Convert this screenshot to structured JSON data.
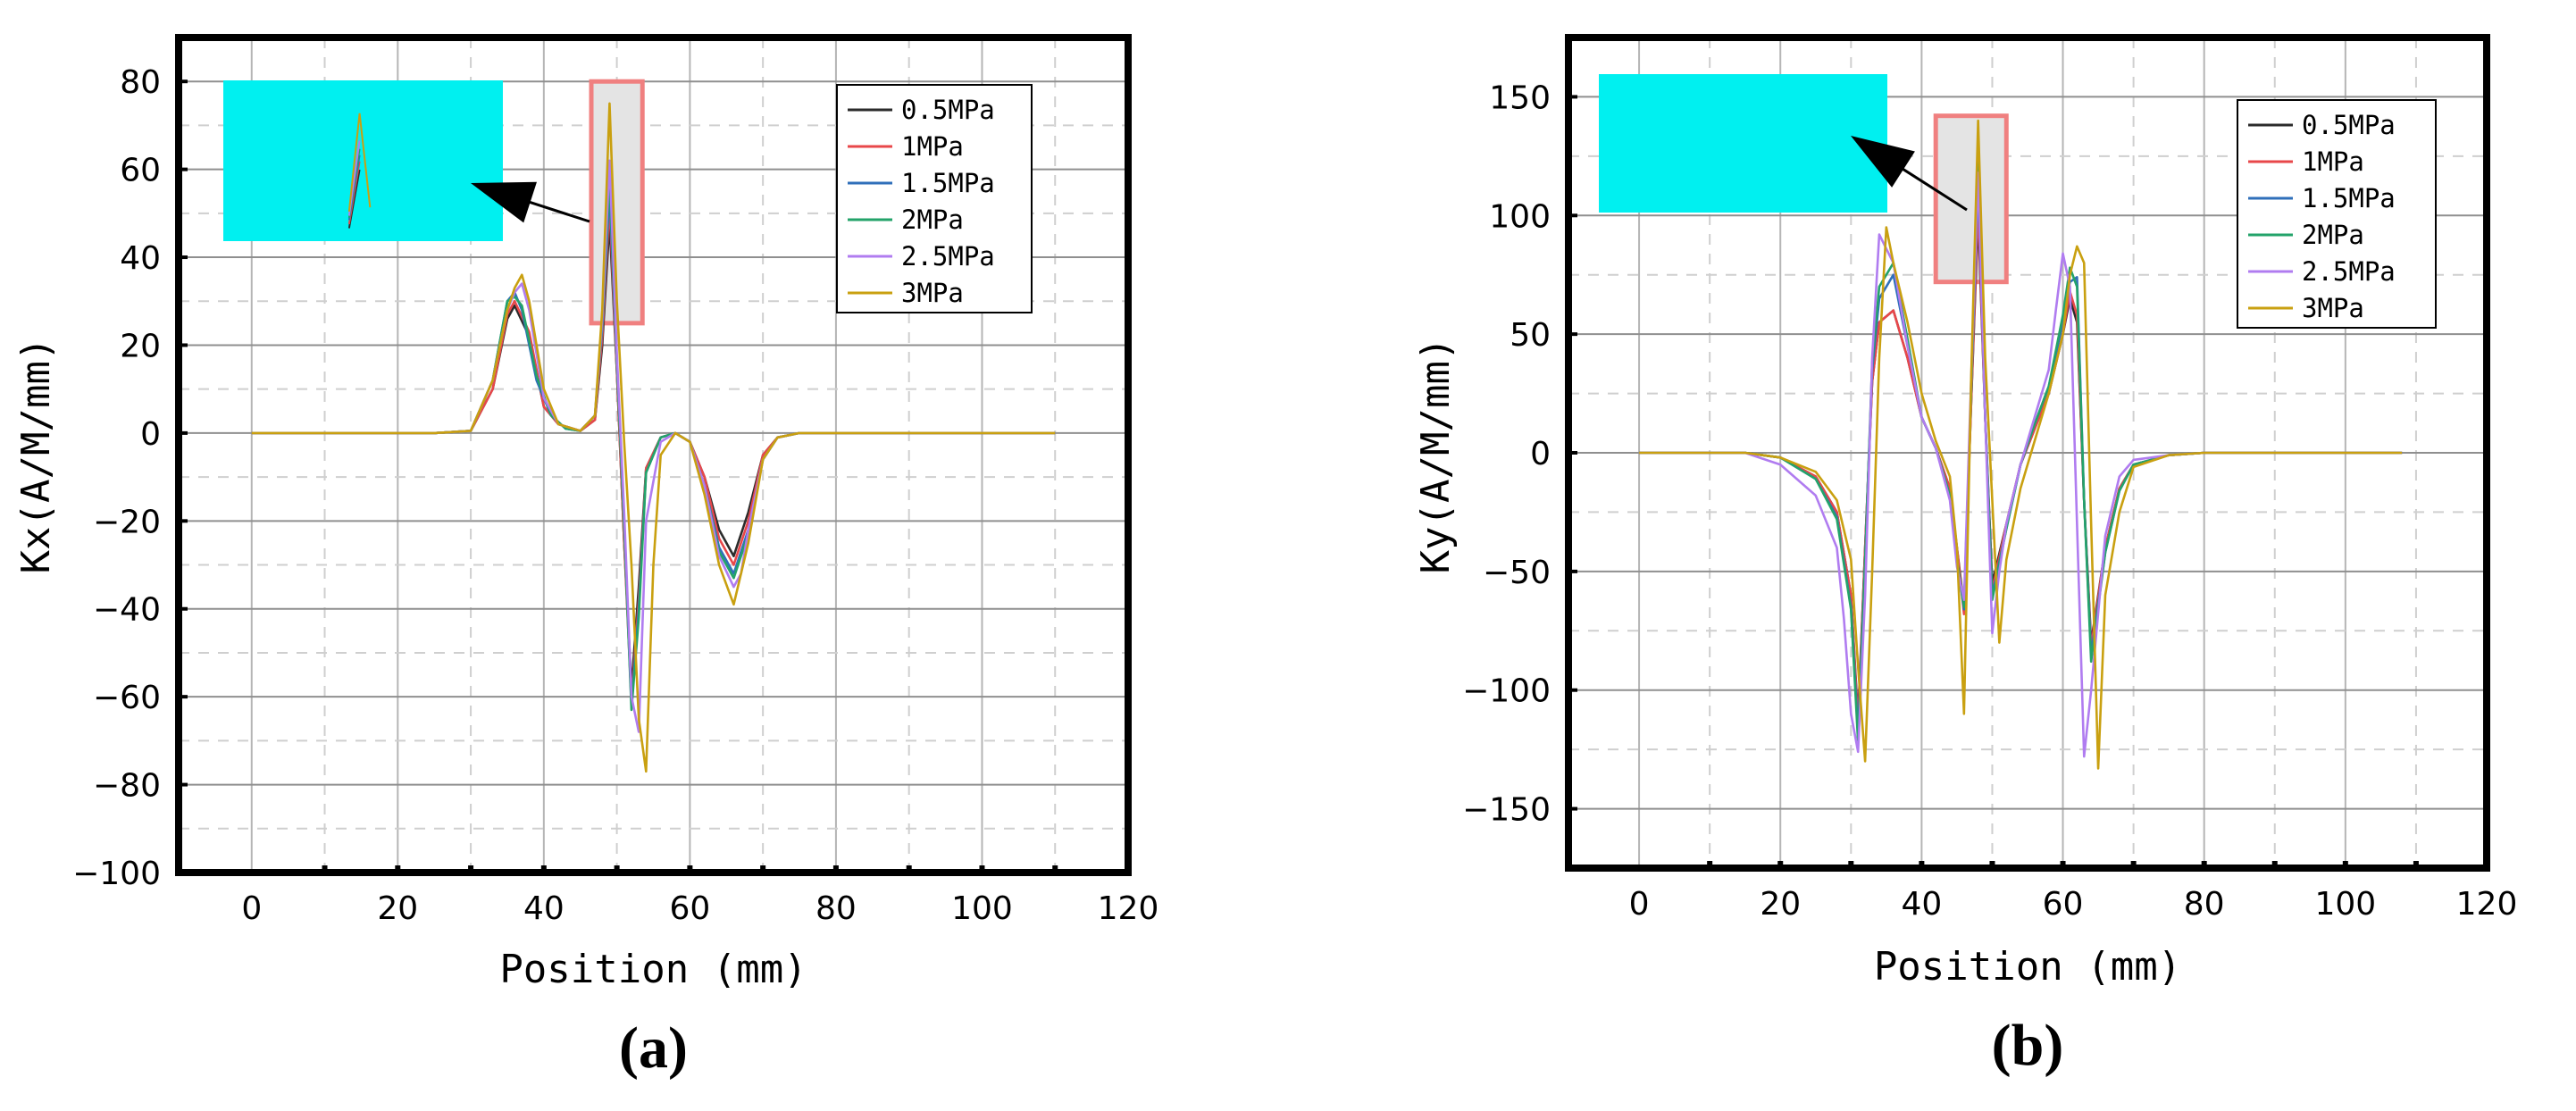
{
  "legend_colors": {
    "0.5MPa": "#2b2b2b",
    "1MPa": "#e8474a",
    "1.5MPa": "#2f6fba",
    "2MPa": "#23a36a",
    "2.5MPa": "#b07cf0",
    "3MPa": "#c9a010"
  },
  "inset_color": "#00f0f0",
  "highlight_color": "#f08080",
  "chart_data": [
    {
      "type": "line",
      "panel_label": "(a)",
      "xlabel": "Position (mm)",
      "ylabel": "Kx(A/M/mm)",
      "xlim": [
        -10,
        120
      ],
      "ylim": [
        -100,
        90
      ],
      "xticks": [
        0,
        20,
        40,
        60,
        80,
        100,
        120
      ],
      "yticks": [
        -100,
        -80,
        -60,
        -40,
        -20,
        0,
        20,
        40,
        60,
        80
      ],
      "grid": true,
      "legend_position": "top-right",
      "series": [
        {
          "name": "0.5MPa",
          "x": [
            0,
            25,
            30,
            33,
            35,
            36,
            38,
            40,
            42,
            45,
            47,
            48,
            49,
            50,
            51,
            52,
            53,
            54,
            56,
            58,
            60,
            62,
            64,
            66,
            68,
            70,
            72,
            75,
            80,
            110
          ],
          "y": [
            0,
            0,
            0.5,
            10,
            26,
            29,
            22,
            6,
            2,
            0.5,
            3,
            20,
            48,
            14,
            -25,
            -58,
            -35,
            -8,
            -1,
            0,
            -2,
            -10,
            -22,
            -28,
            -18,
            -5,
            -1,
            0,
            0,
            0
          ]
        },
        {
          "name": "1MPa",
          "x": [
            0,
            25,
            30,
            33,
            35,
            36,
            38,
            40,
            42,
            45,
            47,
            48,
            49,
            50,
            51,
            52,
            53,
            54,
            56,
            58,
            60,
            62,
            64,
            66,
            68,
            70,
            72,
            75,
            80,
            110
          ],
          "y": [
            0,
            0,
            0.5,
            10,
            27,
            30,
            23,
            6,
            2,
            0.5,
            3,
            22,
            52,
            14,
            -25,
            -61,
            -38,
            -8,
            -1,
            0,
            -2,
            -10,
            -24,
            -30,
            -20,
            -5,
            -1,
            0,
            0,
            0
          ]
        },
        {
          "name": "1.5MPa",
          "x": [
            0,
            25,
            30,
            33,
            35,
            36,
            37,
            39,
            41,
            43,
            45,
            47,
            48,
            49,
            50,
            51,
            52,
            53,
            54,
            56,
            58,
            60,
            62,
            64,
            66,
            68,
            70,
            72,
            75,
            80,
            110
          ],
          "y": [
            0,
            0,
            0.5,
            12,
            30,
            32,
            28,
            12,
            4,
            1,
            0.5,
            4,
            24,
            55,
            16,
            -20,
            -62,
            -40,
            -9,
            -1,
            0,
            -2,
            -12,
            -26,
            -32,
            -22,
            -6,
            -1,
            0,
            0,
            0
          ]
        },
        {
          "name": "2MPa",
          "x": [
            0,
            25,
            30,
            33,
            35,
            36,
            37,
            39,
            41,
            43,
            45,
            47,
            48,
            49,
            50,
            51,
            52,
            53,
            54,
            56,
            58,
            60,
            62,
            64,
            66,
            68,
            70,
            72,
            75,
            80,
            110
          ],
          "y": [
            0,
            0,
            0.5,
            12,
            30,
            31,
            29,
            13,
            4,
            1,
            0.5,
            4,
            25,
            58,
            16,
            -22,
            -63,
            -42,
            -9,
            -1,
            0,
            -2,
            -12,
            -27,
            -33,
            -23,
            -6,
            -1,
            0,
            0,
            0
          ]
        },
        {
          "name": "2.5MPa",
          "x": [
            0,
            25,
            30,
            33,
            35,
            36,
            37,
            38,
            40,
            42,
            45,
            47,
            48,
            49,
            50,
            51,
            52,
            53,
            54,
            56,
            58,
            60,
            62,
            64,
            66,
            67,
            68,
            70,
            72,
            75,
            80,
            110
          ],
          "y": [
            0,
            0,
            0.5,
            12,
            28,
            32,
            34,
            28,
            8,
            2,
            0.5,
            4,
            26,
            62,
            18,
            -18,
            -60,
            -68,
            -20,
            -2,
            0,
            -2,
            -12,
            -28,
            -35,
            -32,
            -22,
            -6,
            -1,
            0,
            0,
            0
          ]
        },
        {
          "name": "3MPa",
          "x": [
            0,
            25,
            30,
            33,
            35,
            36,
            37,
            38,
            40,
            42,
            45,
            47,
            48,
            49,
            50,
            51,
            52,
            53,
            54,
            55,
            56,
            58,
            60,
            62,
            64,
            66,
            68,
            70,
            72,
            75,
            80,
            110
          ],
          "y": [
            0,
            0,
            0.5,
            12,
            28,
            33,
            36,
            30,
            10,
            2,
            0.5,
            4,
            28,
            75,
            30,
            -2,
            -30,
            -65,
            -77,
            -30,
            -5,
            0,
            -2,
            -14,
            -30,
            -39,
            -25,
            -6,
            -1,
            0,
            0,
            0
          ]
        }
      ]
    },
    {
      "type": "line",
      "panel_label": "(b)",
      "xlabel": "Position (mm)",
      "ylabel": "Ky(A/M/mm)",
      "xlim": [
        -10,
        120
      ],
      "ylim": [
        -175,
        175
      ],
      "xticks": [
        0,
        20,
        40,
        60,
        80,
        100,
        120
      ],
      "yticks": [
        -150,
        -100,
        -50,
        0,
        50,
        100,
        150
      ],
      "grid": true,
      "legend_position": "top-right",
      "series": [
        {
          "name": "0.5MPa",
          "x": [
            0,
            15,
            20,
            25,
            28,
            30,
            31,
            32,
            33,
            34,
            36,
            38,
            40,
            42,
            44,
            45,
            46,
            47,
            48,
            49,
            50,
            52,
            54,
            56,
            58,
            60,
            61,
            62,
            63,
            64,
            66,
            68,
            70,
            75,
            80,
            108
          ],
          "y": [
            0,
            0,
            -2,
            -10,
            -25,
            -60,
            -112,
            -40,
            30,
            55,
            60,
            40,
            15,
            2,
            -15,
            -40,
            -65,
            20,
            100,
            15,
            -55,
            -30,
            -5,
            10,
            25,
            50,
            65,
            55,
            -20,
            -80,
            -40,
            -15,
            -5,
            -1,
            0,
            0
          ]
        },
        {
          "name": "1MPa",
          "x": [
            0,
            15,
            20,
            25,
            28,
            30,
            31,
            32,
            33,
            34,
            36,
            38,
            40,
            42,
            44,
            45,
            46,
            47,
            48,
            49,
            50,
            52,
            54,
            56,
            58,
            60,
            61,
            62,
            63,
            64,
            66,
            68,
            70,
            75,
            80,
            108
          ],
          "y": [
            0,
            0,
            -2,
            -10,
            -25,
            -60,
            -114,
            -40,
            30,
            55,
            60,
            40,
            15,
            2,
            -15,
            -40,
            -68,
            20,
            105,
            15,
            -58,
            -30,
            -5,
            10,
            25,
            50,
            68,
            58,
            -20,
            -82,
            -40,
            -15,
            -5,
            -1,
            0,
            0
          ]
        },
        {
          "name": "1.5MPa",
          "x": [
            0,
            15,
            20,
            25,
            28,
            30,
            31,
            32,
            33,
            34,
            36,
            38,
            40,
            42,
            44,
            45,
            46,
            47,
            48,
            49,
            50,
            52,
            54,
            56,
            58,
            60,
            61,
            62,
            63,
            64,
            66,
            68,
            70,
            75,
            80,
            108
          ],
          "y": [
            0,
            0,
            -2,
            -11,
            -27,
            -65,
            -118,
            -45,
            35,
            65,
            75,
            45,
            15,
            2,
            -18,
            -45,
            -66,
            25,
            115,
            15,
            -60,
            -32,
            -5,
            12,
            28,
            55,
            72,
            74,
            -20,
            -85,
            -42,
            -16,
            -5,
            -1,
            0,
            0
          ]
        },
        {
          "name": "2MPa",
          "x": [
            0,
            15,
            20,
            25,
            28,
            30,
            31,
            32,
            33,
            34,
            36,
            38,
            40,
            42,
            44,
            45,
            46,
            47,
            48,
            49,
            50,
            52,
            54,
            56,
            58,
            60,
            61,
            62,
            63,
            64,
            66,
            68,
            70,
            75,
            80,
            108
          ],
          "y": [
            0,
            0,
            -2,
            -11,
            -28,
            -66,
            -122,
            -45,
            38,
            70,
            80,
            48,
            15,
            2,
            -18,
            -45,
            -65,
            25,
            125,
            15,
            -62,
            -32,
            -5,
            12,
            28,
            58,
            78,
            70,
            -20,
            -88,
            -42,
            -16,
            -5,
            -1,
            0,
            0
          ]
        },
        {
          "name": "2.5MPa",
          "x": [
            0,
            15,
            20,
            25,
            28,
            29,
            30,
            31,
            32,
            33,
            34,
            36,
            38,
            40,
            42,
            44,
            45,
            46,
            47,
            48,
            49,
            50,
            51,
            52,
            54,
            56,
            58,
            59,
            60,
            61,
            62,
            63,
            64,
            66,
            68,
            70,
            75,
            80,
            108
          ],
          "y": [
            0,
            0,
            -5,
            -18,
            -40,
            -70,
            -110,
            -126,
            -60,
            40,
            92,
            80,
            45,
            15,
            2,
            -20,
            -48,
            -62,
            30,
            118,
            15,
            -76,
            -50,
            -30,
            -5,
            15,
            35,
            60,
            84,
            70,
            -30,
            -128,
            -100,
            -35,
            -10,
            -3,
            -1,
            0,
            0
          ]
        },
        {
          "name": "3MPa",
          "x": [
            0,
            15,
            20,
            25,
            28,
            30,
            31,
            32,
            33,
            34,
            35,
            36,
            38,
            40,
            42,
            44,
            45,
            46,
            47,
            48,
            49,
            50,
            51,
            52,
            54,
            56,
            58,
            60,
            61,
            62,
            63,
            64,
            65,
            66,
            68,
            70,
            75,
            80,
            108
          ],
          "y": [
            0,
            0,
            -2,
            -8,
            -20,
            -45,
            -90,
            -130,
            -50,
            40,
            95,
            80,
            55,
            25,
            5,
            -10,
            -40,
            -110,
            30,
            140,
            40,
            -20,
            -80,
            -45,
            -15,
            5,
            25,
            50,
            75,
            87,
            80,
            -30,
            -133,
            -60,
            -25,
            -6,
            -1,
            0,
            0
          ]
        }
      ]
    }
  ]
}
